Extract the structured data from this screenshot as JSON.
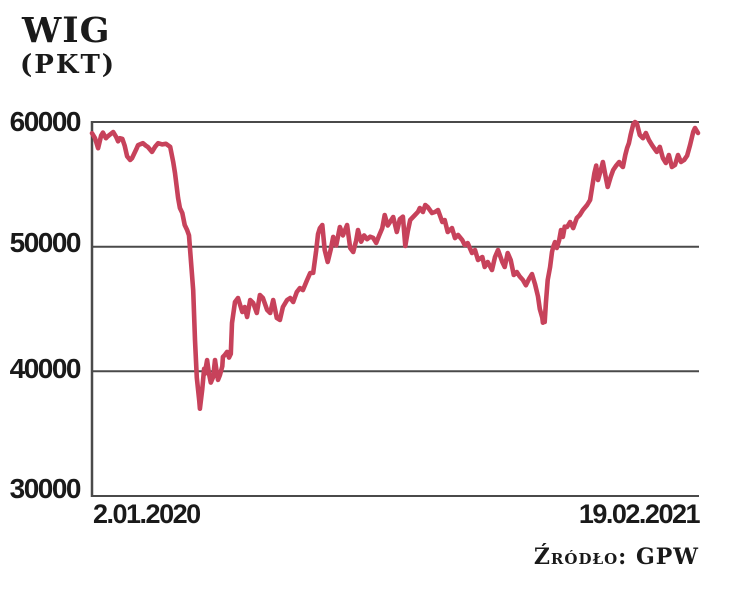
{
  "header": {
    "title": "WIG",
    "subtitle": "(PKT)"
  },
  "footer": {
    "source": "Źródło: GPW"
  },
  "chart_data": {
    "type": "line",
    "title": "WIG",
    "unit_label": "(PKT)",
    "source": "Źródło: GPW",
    "ylim": [
      30000,
      60000
    ],
    "yticks": [
      60000,
      50000,
      40000,
      30000
    ],
    "ytick_labels": [
      "60000",
      "50000",
      "40000",
      "30000"
    ],
    "xtick_labels": [
      "2.01.2020",
      "19.02.2021"
    ],
    "x_start": "2.01.2020",
    "x_end": "19.02.2021",
    "grid": "horizontal-gridlines-at-yticks, left-and-bottom-axis, no-right-border",
    "legend": "none",
    "line_color": "#c7425b",
    "axis_color": "#4a4a4a",
    "series": [
      {
        "name": "WIG",
        "note": "points are [t, value]; t = fraction of time axis from 2.01.2020 (0) to 19.02.2021 (1), values in index points read from chart",
        "points": [
          [
            0.0,
            59100
          ],
          [
            0.005,
            58700
          ],
          [
            0.01,
            57900
          ],
          [
            0.015,
            58900
          ],
          [
            0.018,
            59150
          ],
          [
            0.023,
            58700
          ],
          [
            0.026,
            58850
          ],
          [
            0.035,
            59200
          ],
          [
            0.04,
            58800
          ],
          [
            0.043,
            58450
          ],
          [
            0.046,
            58700
          ],
          [
            0.05,
            58650
          ],
          [
            0.054,
            58100
          ],
          [
            0.058,
            57250
          ],
          [
            0.063,
            56950
          ],
          [
            0.066,
            57100
          ],
          [
            0.073,
            57800
          ],
          [
            0.076,
            58150
          ],
          [
            0.084,
            58300
          ],
          [
            0.089,
            58100
          ],
          [
            0.092,
            58000
          ],
          [
            0.099,
            57600
          ],
          [
            0.104,
            58000
          ],
          [
            0.109,
            58300
          ],
          [
            0.116,
            58200
          ],
          [
            0.122,
            58250
          ],
          [
            0.129,
            58000
          ],
          [
            0.134,
            56800
          ],
          [
            0.137,
            55900
          ],
          [
            0.142,
            53900
          ],
          [
            0.145,
            53100
          ],
          [
            0.149,
            52700
          ],
          [
            0.153,
            51740
          ],
          [
            0.157,
            51340
          ],
          [
            0.16,
            50900
          ],
          [
            0.163,
            49000
          ],
          [
            0.167,
            46500
          ],
          [
            0.17,
            42500
          ],
          [
            0.173,
            39500
          ],
          [
            0.177,
            37600
          ],
          [
            0.178,
            37000
          ],
          [
            0.182,
            38600
          ],
          [
            0.185,
            40200
          ],
          [
            0.186,
            39800
          ],
          [
            0.19,
            40900
          ],
          [
            0.193,
            39800
          ],
          [
            0.196,
            39100
          ],
          [
            0.2,
            39550
          ],
          [
            0.203,
            40910
          ],
          [
            0.206,
            39900
          ],
          [
            0.208,
            39310
          ],
          [
            0.211,
            39700
          ],
          [
            0.215,
            40400
          ],
          [
            0.216,
            41150
          ],
          [
            0.219,
            41300
          ],
          [
            0.223,
            41560
          ],
          [
            0.226,
            41100
          ],
          [
            0.229,
            41400
          ],
          [
            0.231,
            43880
          ],
          [
            0.236,
            45560
          ],
          [
            0.241,
            45880
          ],
          [
            0.248,
            44760
          ],
          [
            0.252,
            45160
          ],
          [
            0.256,
            44360
          ],
          [
            0.261,
            45720
          ],
          [
            0.266,
            45480
          ],
          [
            0.272,
            44680
          ],
          [
            0.277,
            46120
          ],
          [
            0.282,
            45880
          ],
          [
            0.289,
            44930
          ],
          [
            0.294,
            44680
          ],
          [
            0.299,
            45720
          ],
          [
            0.305,
            44280
          ],
          [
            0.31,
            44120
          ],
          [
            0.315,
            45160
          ],
          [
            0.322,
            45720
          ],
          [
            0.327,
            45880
          ],
          [
            0.332,
            45560
          ],
          [
            0.338,
            46360
          ],
          [
            0.343,
            46680
          ],
          [
            0.348,
            46520
          ],
          [
            0.355,
            47330
          ],
          [
            0.36,
            47890
          ],
          [
            0.365,
            47900
          ],
          [
            0.37,
            49700
          ],
          [
            0.373,
            51000
          ],
          [
            0.376,
            51490
          ],
          [
            0.38,
            51740
          ],
          [
            0.384,
            49730
          ],
          [
            0.389,
            48770
          ],
          [
            0.394,
            49800
          ],
          [
            0.398,
            50780
          ],
          [
            0.403,
            50100
          ],
          [
            0.409,
            51580
          ],
          [
            0.414,
            50900
          ],
          [
            0.421,
            51740
          ],
          [
            0.426,
            49890
          ],
          [
            0.431,
            49570
          ],
          [
            0.436,
            50500
          ],
          [
            0.439,
            51340
          ],
          [
            0.444,
            50400
          ],
          [
            0.449,
            50900
          ],
          [
            0.454,
            50600
          ],
          [
            0.459,
            50800
          ],
          [
            0.464,
            50700
          ],
          [
            0.469,
            50300
          ],
          [
            0.474,
            50900
          ],
          [
            0.479,
            51490
          ],
          [
            0.483,
            52540
          ],
          [
            0.488,
            51700
          ],
          [
            0.492,
            52000
          ],
          [
            0.497,
            52380
          ],
          [
            0.503,
            51180
          ],
          [
            0.508,
            52200
          ],
          [
            0.513,
            52400
          ],
          [
            0.517,
            50050
          ],
          [
            0.521,
            51200
          ],
          [
            0.525,
            52140
          ],
          [
            0.533,
            52540
          ],
          [
            0.538,
            52800
          ],
          [
            0.541,
            53100
          ],
          [
            0.546,
            52780
          ],
          [
            0.55,
            53340
          ],
          [
            0.554,
            53180
          ],
          [
            0.561,
            52700
          ],
          [
            0.566,
            52780
          ],
          [
            0.571,
            52940
          ],
          [
            0.578,
            51980
          ],
          [
            0.582,
            52140
          ],
          [
            0.587,
            51180
          ],
          [
            0.594,
            51490
          ],
          [
            0.599,
            50690
          ],
          [
            0.604,
            50940
          ],
          [
            0.611,
            50530
          ],
          [
            0.615,
            50130
          ],
          [
            0.62,
            50290
          ],
          [
            0.627,
            49490
          ],
          [
            0.632,
            49730
          ],
          [
            0.637,
            48930
          ],
          [
            0.644,
            49170
          ],
          [
            0.648,
            48370
          ],
          [
            0.653,
            48770
          ],
          [
            0.66,
            48130
          ],
          [
            0.665,
            49170
          ],
          [
            0.67,
            49730
          ],
          [
            0.677,
            48770
          ],
          [
            0.681,
            48370
          ],
          [
            0.686,
            49490
          ],
          [
            0.691,
            48930
          ],
          [
            0.696,
            47730
          ],
          [
            0.701,
            47970
          ],
          [
            0.706,
            47600
          ],
          [
            0.711,
            47330
          ],
          [
            0.716,
            46900
          ],
          [
            0.721,
            47400
          ],
          [
            0.726,
            47800
          ],
          [
            0.731,
            47000
          ],
          [
            0.736,
            46000
          ],
          [
            0.739,
            45000
          ],
          [
            0.743,
            44300
          ],
          [
            0.744,
            43900
          ],
          [
            0.746,
            44400
          ],
          [
            0.747,
            43960
          ],
          [
            0.749,
            45500
          ],
          [
            0.752,
            47330
          ],
          [
            0.756,
            48370
          ],
          [
            0.759,
            49570
          ],
          [
            0.761,
            49970
          ],
          [
            0.764,
            50370
          ],
          [
            0.767,
            49890
          ],
          [
            0.771,
            50530
          ],
          [
            0.774,
            51340
          ],
          [
            0.777,
            50780
          ],
          [
            0.78,
            51600
          ],
          [
            0.784,
            51580
          ],
          [
            0.789,
            51980
          ],
          [
            0.794,
            51490
          ],
          [
            0.8,
            52300
          ],
          [
            0.805,
            52540
          ],
          [
            0.81,
            52940
          ],
          [
            0.817,
            53340
          ],
          [
            0.822,
            53740
          ],
          [
            0.825,
            54700
          ],
          [
            0.829,
            55900
          ],
          [
            0.832,
            56500
          ],
          [
            0.835,
            55350
          ],
          [
            0.84,
            56200
          ],
          [
            0.843,
            56790
          ],
          [
            0.848,
            55500
          ],
          [
            0.851,
            54790
          ],
          [
            0.856,
            55600
          ],
          [
            0.86,
            56150
          ],
          [
            0.865,
            56500
          ],
          [
            0.87,
            56790
          ],
          [
            0.873,
            56550
          ],
          [
            0.876,
            56390
          ],
          [
            0.88,
            57350
          ],
          [
            0.883,
            57910
          ],
          [
            0.886,
            58300
          ],
          [
            0.889,
            59000
          ],
          [
            0.893,
            59800
          ],
          [
            0.896,
            60000
          ],
          [
            0.899,
            59900
          ],
          [
            0.904,
            58960
          ],
          [
            0.909,
            58700
          ],
          [
            0.914,
            59120
          ],
          [
            0.919,
            58560
          ],
          [
            0.924,
            58160
          ],
          [
            0.929,
            57800
          ],
          [
            0.932,
            57600
          ],
          [
            0.937,
            58000
          ],
          [
            0.942,
            57100
          ],
          [
            0.947,
            56710
          ],
          [
            0.952,
            57350
          ],
          [
            0.957,
            56390
          ],
          [
            0.962,
            56550
          ],
          [
            0.967,
            57350
          ],
          [
            0.972,
            56790
          ],
          [
            0.977,
            56950
          ],
          [
            0.982,
            57300
          ],
          [
            0.987,
            58160
          ],
          [
            0.992,
            59200
          ],
          [
            0.995,
            59520
          ],
          [
            1.0,
            59120
          ]
        ]
      }
    ]
  }
}
